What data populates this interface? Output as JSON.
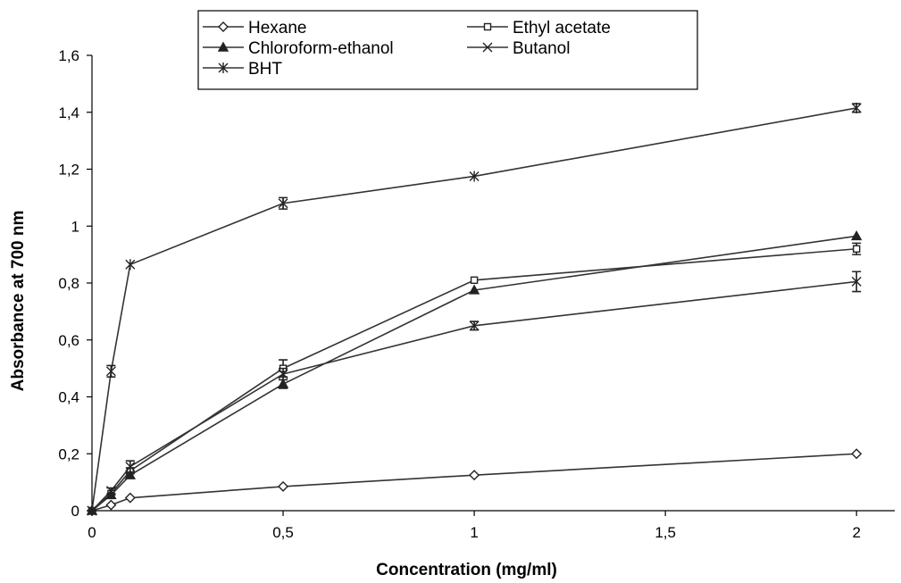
{
  "chart_data": {
    "type": "line",
    "xlabel": "Concentration (mg/ml)",
    "ylabel": "Absorbance at 700 nm",
    "xlim": [
      0,
      2.1
    ],
    "ylim": [
      0,
      1.6
    ],
    "x_ticks": [
      0,
      0.5,
      1,
      1.5,
      2
    ],
    "x_tick_labels": [
      "0",
      "0,5",
      "1",
      "1,5",
      "2"
    ],
    "y_ticks": [
      0,
      0.2,
      0.4,
      0.6,
      0.8,
      1.0,
      1.2,
      1.4,
      1.6
    ],
    "y_tick_labels": [
      "0",
      "0,2",
      "0,4",
      "0,6",
      "0,8",
      "1",
      "1,2",
      "1,4",
      "1,6"
    ],
    "grid": false,
    "legend_position": "top",
    "x": [
      0,
      0.05,
      0.1,
      0.5,
      1,
      2
    ],
    "series": [
      {
        "name": "Hexane",
        "marker": "diamond-open",
        "values": [
          0,
          0.02,
          0.045,
          0.085,
          0.125,
          0.2
        ],
        "errors": [
          0,
          0,
          0,
          0,
          0,
          0
        ]
      },
      {
        "name": "Ethyl acetate",
        "marker": "square-open",
        "values": [
          0,
          0.06,
          0.14,
          0.5,
          0.81,
          0.92
        ],
        "errors": [
          0,
          0,
          0.01,
          0.03,
          0,
          0.02
        ]
      },
      {
        "name": "Chloroform-ethanol",
        "marker": "triangle-filled",
        "values": [
          0,
          0.055,
          0.125,
          0.445,
          0.775,
          0.965
        ],
        "errors": [
          0,
          0,
          0.01,
          0.015,
          0,
          0
        ]
      },
      {
        "name": "Butanol",
        "marker": "x",
        "values": [
          0,
          0.07,
          0.155,
          0.48,
          0.65,
          0.805
        ],
        "errors": [
          0,
          0.01,
          0.02,
          0.02,
          0.015,
          0.035
        ]
      },
      {
        "name": "BHT",
        "marker": "asterisk",
        "values": [
          0,
          0.49,
          0.865,
          1.08,
          1.175,
          1.415
        ],
        "errors": [
          0,
          0.02,
          0,
          0.02,
          0,
          0.015
        ]
      }
    ]
  }
}
